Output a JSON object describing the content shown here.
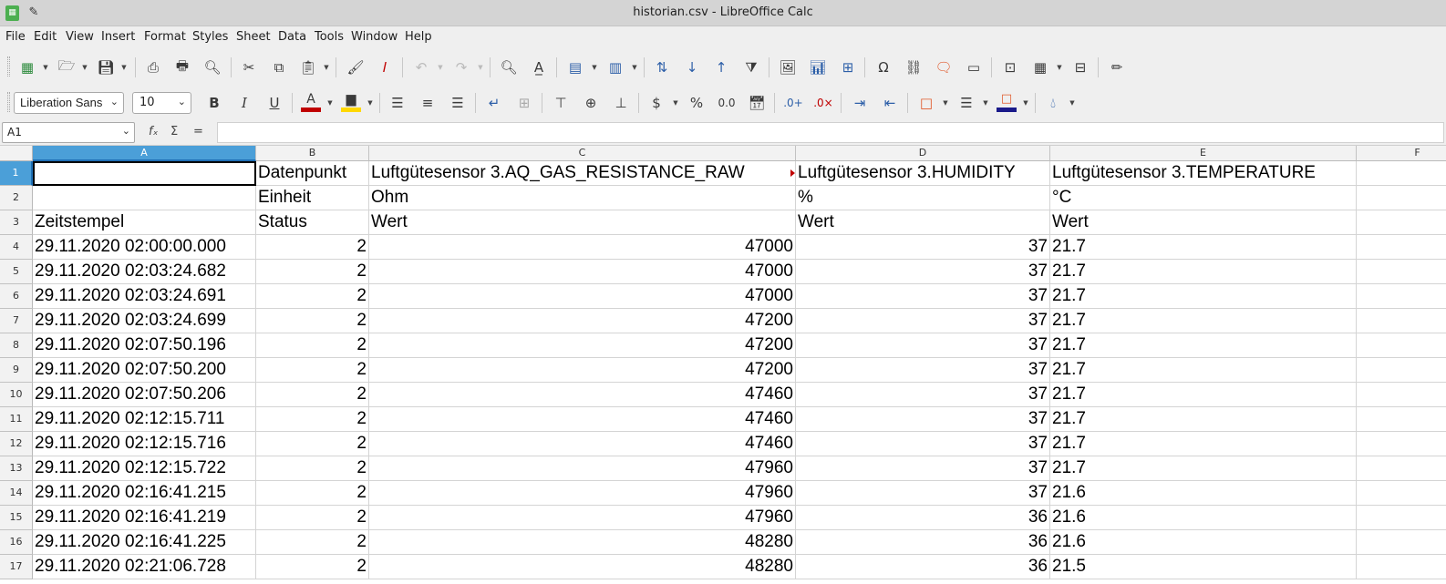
{
  "window": {
    "title": "historian.csv - LibreOffice Calc"
  },
  "menu": [
    "File",
    "Edit",
    "View",
    "Insert",
    "Format",
    "Styles",
    "Sheet",
    "Data",
    "Tools",
    "Window",
    "Help"
  ],
  "format_bar": {
    "font_name": "Liberation Sans",
    "font_size": "10"
  },
  "formula_bar": {
    "cell_ref": "A1",
    "content": ""
  },
  "colors": {
    "selection_header": "#4b9fd8",
    "font_color_swatch": "#c00000",
    "highlight_swatch": "#ffd800",
    "border_color_swatch": "#1a1a8a"
  },
  "sheet": {
    "columns": [
      "A",
      "B",
      "C",
      "D",
      "E",
      "F"
    ],
    "rows": [
      {
        "n": "1",
        "a": "",
        "b": "Datenpunkt",
        "c": "Luftgütesensor 3.AQ_GAS_RESISTANCE_RAW",
        "d": "Luftgütesensor 3.HUMIDITY",
        "e": "Luftgütesensor 3.TEMPERATURE"
      },
      {
        "n": "2",
        "a": "",
        "b": "Einheit",
        "c": "Ohm",
        "d": "%",
        "e": "°C"
      },
      {
        "n": "3",
        "a": "Zeitstempel",
        "b": "Status",
        "c": "Wert",
        "d": "Wert",
        "e": "Wert"
      },
      {
        "n": "4",
        "a": "29.11.2020 02:00:00.000",
        "b": "2",
        "c": "47000",
        "d": "37",
        "e": "21.7"
      },
      {
        "n": "5",
        "a": "29.11.2020 02:03:24.682",
        "b": "2",
        "c": "47000",
        "d": "37",
        "e": "21.7"
      },
      {
        "n": "6",
        "a": "29.11.2020 02:03:24.691",
        "b": "2",
        "c": "47000",
        "d": "37",
        "e": "21.7"
      },
      {
        "n": "7",
        "a": "29.11.2020 02:03:24.699",
        "b": "2",
        "c": "47200",
        "d": "37",
        "e": "21.7"
      },
      {
        "n": "8",
        "a": "29.11.2020 02:07:50.196",
        "b": "2",
        "c": "47200",
        "d": "37",
        "e": "21.7"
      },
      {
        "n": "9",
        "a": "29.11.2020 02:07:50.200",
        "b": "2",
        "c": "47200",
        "d": "37",
        "e": "21.7"
      },
      {
        "n": "10",
        "a": "29.11.2020 02:07:50.206",
        "b": "2",
        "c": "47460",
        "d": "37",
        "e": "21.7"
      },
      {
        "n": "11",
        "a": "29.11.2020 02:12:15.711",
        "b": "2",
        "c": "47460",
        "d": "37",
        "e": "21.7"
      },
      {
        "n": "12",
        "a": "29.11.2020 02:12:15.716",
        "b": "2",
        "c": "47460",
        "d": "37",
        "e": "21.7"
      },
      {
        "n": "13",
        "a": "29.11.2020 02:12:15.722",
        "b": "2",
        "c": "47960",
        "d": "37",
        "e": "21.7"
      },
      {
        "n": "14",
        "a": "29.11.2020 02:16:41.215",
        "b": "2",
        "c": "47960",
        "d": "37",
        "e": "21.6"
      },
      {
        "n": "15",
        "a": "29.11.2020 02:16:41.219",
        "b": "2",
        "c": "47960",
        "d": "36",
        "e": "21.6"
      },
      {
        "n": "16",
        "a": "29.11.2020 02:16:41.225",
        "b": "2",
        "c": "48280",
        "d": "36",
        "e": "21.6"
      },
      {
        "n": "17",
        "a": "29.11.2020 02:21:06.728",
        "b": "2",
        "c": "48280",
        "d": "36",
        "e": "21.5"
      }
    ]
  }
}
